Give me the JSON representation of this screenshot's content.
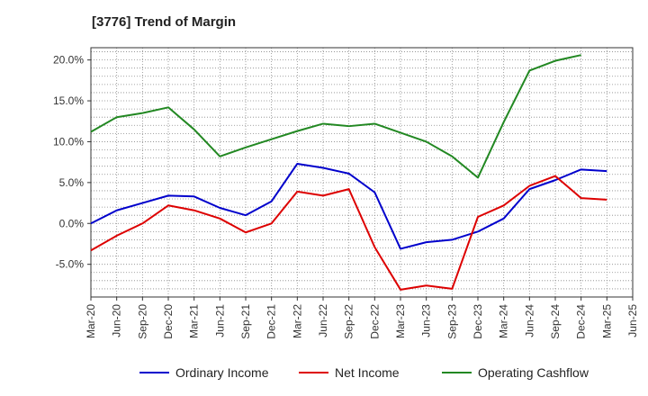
{
  "chart_data": {
    "type": "line",
    "title": "[3776]  Trend of Margin",
    "xlabel": "",
    "ylabel": "",
    "categories": [
      "Mar-20",
      "Jun-20",
      "Sep-20",
      "Dec-20",
      "Mar-21",
      "Jun-21",
      "Sep-21",
      "Dec-21",
      "Mar-22",
      "Jun-22",
      "Sep-22",
      "Dec-22",
      "Mar-23",
      "Jun-23",
      "Sep-23",
      "Dec-23",
      "Mar-24",
      "Jun-24",
      "Sep-24",
      "Dec-24",
      "Mar-25",
      "Jun-25"
    ],
    "ylim": [
      -9.0,
      21.5
    ],
    "yticks": [
      20.0,
      15.0,
      10.0,
      5.0,
      0.0,
      -5.0
    ],
    "ytick_labels": [
      "20.0%",
      "15.0%",
      "10.0%",
      "5.0%",
      "0.0%",
      "-5.0%"
    ],
    "grid": true,
    "legend_position": "bottom",
    "series": [
      {
        "name": "Ordinary Income",
        "color": "#0000cc",
        "values": [
          0.0,
          1.6,
          2.5,
          3.4,
          3.3,
          1.9,
          1.0,
          2.7,
          7.3,
          6.8,
          6.1,
          3.8,
          -3.1,
          -2.3,
          -2.0,
          -1.0,
          0.6,
          4.2,
          5.3,
          6.6,
          6.4,
          null
        ]
      },
      {
        "name": "Net Income",
        "color": "#dd0000",
        "values": [
          -3.3,
          -1.5,
          0.0,
          2.2,
          1.6,
          0.6,
          -1.1,
          0.0,
          3.9,
          3.4,
          4.2,
          -2.9,
          -8.1,
          -7.6,
          -8.0,
          0.8,
          2.2,
          4.6,
          5.8,
          3.1,
          2.9,
          null
        ]
      },
      {
        "name": "Operating Cashflow",
        "color": "#228822",
        "values": [
          11.2,
          13.0,
          13.5,
          14.2,
          11.5,
          8.2,
          9.3,
          10.3,
          11.3,
          12.2,
          11.9,
          12.2,
          11.1,
          10.0,
          8.2,
          5.6,
          12.4,
          18.7,
          19.9,
          20.6,
          null,
          null
        ]
      }
    ]
  }
}
